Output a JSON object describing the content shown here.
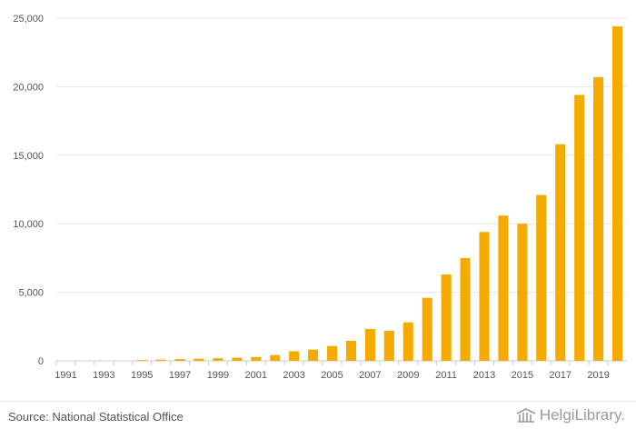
{
  "chart_data": {
    "type": "bar",
    "x": [
      1991,
      1992,
      1993,
      1994,
      1995,
      1996,
      1997,
      1998,
      1999,
      2000,
      2001,
      2002,
      2003,
      2004,
      2005,
      2006,
      2007,
      2008,
      2009,
      2010,
      2011,
      2012,
      2013,
      2014,
      2015,
      2016,
      2017,
      2018,
      2019,
      2020
    ],
    "values": [
      0,
      0,
      0,
      0,
      60,
      90,
      130,
      160,
      190,
      230,
      280,
      420,
      700,
      820,
      1080,
      1460,
      2320,
      2200,
      2800,
      4600,
      6300,
      7500,
      9400,
      10600,
      10000,
      12100,
      15800,
      19400,
      20700,
      24400
    ],
    "x_tick_labels": [
      "1991",
      "1993",
      "1995",
      "1997",
      "1999",
      "2001",
      "2003",
      "2005",
      "2007",
      "2009",
      "2011",
      "2013",
      "2015",
      "2017",
      "2019"
    ],
    "y_ticks": [
      0,
      5000,
      10000,
      15000,
      20000,
      25000
    ],
    "y_tick_labels": [
      "0",
      "5,000",
      "10,000",
      "15,000",
      "20,000",
      "25,000"
    ],
    "ylim": [
      0,
      25000
    ],
    "grid": true,
    "bar_color": "#f5aa00"
  },
  "footer": {
    "source": "Source: National Statistical Office",
    "brand": "HelgiLibrary."
  }
}
